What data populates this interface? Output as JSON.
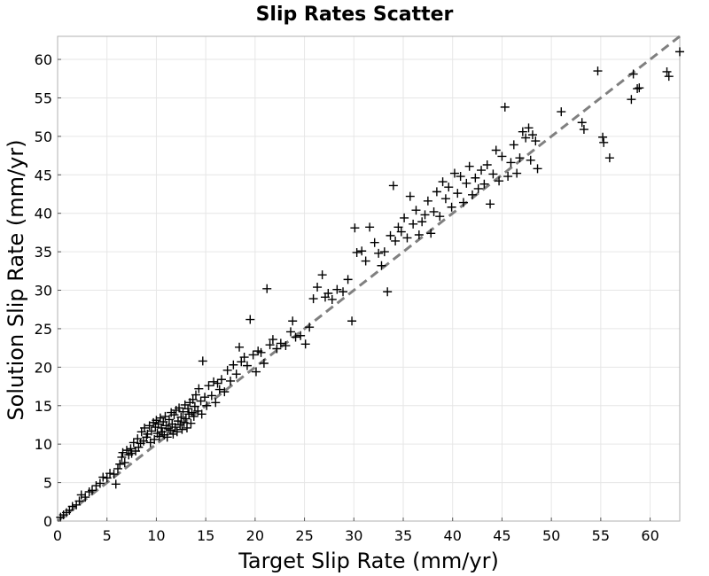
{
  "chart_data": {
    "type": "scatter",
    "title": "Slip Rates Scatter",
    "xlabel": "Target Slip Rate (mm/yr)",
    "ylabel": "Solution Slip Rate (mm/yr)",
    "xlim": [
      0,
      63
    ],
    "ylim": [
      0,
      63
    ],
    "xticks": [
      0,
      5,
      10,
      15,
      20,
      25,
      30,
      35,
      40,
      45,
      50,
      55,
      60
    ],
    "yticks": [
      0,
      5,
      10,
      15,
      20,
      25,
      30,
      35,
      40,
      45,
      50,
      55,
      60
    ],
    "grid": true,
    "marker": "+",
    "marker_color": "#000000",
    "reference_line": {
      "from": [
        0,
        0
      ],
      "to": [
        63,
        63
      ],
      "style": "dashed",
      "color": "#808080"
    },
    "points": [
      [
        0.3,
        0.5
      ],
      [
        0.6,
        0.8
      ],
      [
        0.9,
        1.1
      ],
      [
        1.2,
        1.4
      ],
      [
        1.5,
        1.9
      ],
      [
        1.9,
        2.1
      ],
      [
        2.2,
        2.6
      ],
      [
        2.4,
        3.4
      ],
      [
        2.8,
        3.1
      ],
      [
        3.2,
        3.8
      ],
      [
        3.5,
        4.0
      ],
      [
        3.9,
        4.6
      ],
      [
        4.3,
        4.9
      ],
      [
        4.6,
        5.7
      ],
      [
        5.0,
        5.6
      ],
      [
        5.3,
        6.2
      ],
      [
        5.7,
        6.1
      ],
      [
        5.9,
        4.8
      ],
      [
        6.1,
        6.8
      ],
      [
        6.3,
        7.4
      ],
      [
        6.5,
        8.3
      ],
      [
        6.6,
        8.9
      ],
      [
        6.8,
        7.6
      ],
      [
        7.0,
        9.2
      ],
      [
        7.2,
        8.6
      ],
      [
        7.4,
        9.4
      ],
      [
        7.5,
        8.8
      ],
      [
        7.7,
        10.2
      ],
      [
        7.9,
        9.1
      ],
      [
        8.1,
        10.7
      ],
      [
        8.2,
        9.6
      ],
      [
        8.4,
        10.1
      ],
      [
        8.5,
        11.6
      ],
      [
        8.7,
        10.4
      ],
      [
        8.8,
        12.1
      ],
      [
        9.0,
        10.9
      ],
      [
        9.1,
        11.3
      ],
      [
        9.3,
        12.4
      ],
      [
        9.4,
        10.2
      ],
      [
        9.5,
        11.7
      ],
      [
        9.7,
        12.8
      ],
      [
        9.8,
        10.6
      ],
      [
        9.9,
        12.2
      ],
      [
        10.0,
        13.1
      ],
      [
        10.1,
        11.4
      ],
      [
        10.2,
        12.6
      ],
      [
        10.3,
        11.0
      ],
      [
        10.4,
        13.4
      ],
      [
        10.5,
        12.1
      ],
      [
        10.6,
        11.6
      ],
      [
        10.7,
        12.9
      ],
      [
        10.8,
        11.2
      ],
      [
        10.9,
        13.6
      ],
      [
        11.0,
        12.4
      ],
      [
        11.1,
        10.9
      ],
      [
        11.2,
        12.0
      ],
      [
        11.3,
        13.2
      ],
      [
        11.4,
        11.8
      ],
      [
        11.5,
        14.1
      ],
      [
        11.6,
        12.6
      ],
      [
        11.7,
        11.3
      ],
      [
        11.8,
        13.8
      ],
      [
        11.9,
        12.2
      ],
      [
        12.0,
        14.4
      ],
      [
        12.1,
        11.6
      ],
      [
        12.2,
        13.0
      ],
      [
        12.3,
        14.7
      ],
      [
        12.4,
        12.5
      ],
      [
        12.5,
        13.5
      ],
      [
        12.6,
        11.9
      ],
      [
        12.7,
        14.2
      ],
      [
        12.8,
        12.8
      ],
      [
        12.9,
        15.1
      ],
      [
        13.0,
        13.3
      ],
      [
        13.1,
        12.1
      ],
      [
        13.2,
        14.6
      ],
      [
        13.3,
        13.9
      ],
      [
        13.4,
        15.4
      ],
      [
        13.5,
        12.7
      ],
      [
        13.6,
        14.1
      ],
      [
        13.7,
        15.8
      ],
      [
        13.8,
        13.6
      ],
      [
        13.9,
        14.9
      ],
      [
        14.0,
        16.4
      ],
      [
        14.2,
        14.3
      ],
      [
        14.3,
        17.2
      ],
      [
        14.5,
        15.6
      ],
      [
        14.6,
        13.9
      ],
      [
        14.7,
        20.8
      ],
      [
        14.9,
        16.1
      ],
      [
        15.1,
        15.0
      ],
      [
        15.3,
        17.6
      ],
      [
        15.6,
        16.3
      ],
      [
        15.8,
        18.1
      ],
      [
        16.0,
        15.4
      ],
      [
        16.2,
        17.9
      ],
      [
        16.4,
        17.1
      ],
      [
        16.6,
        18.4
      ],
      [
        16.9,
        16.8
      ],
      [
        17.2,
        19.6
      ],
      [
        17.5,
        18.2
      ],
      [
        17.8,
        20.3
      ],
      [
        18.1,
        19.1
      ],
      [
        18.4,
        22.6
      ],
      [
        18.6,
        20.7
      ],
      [
        18.9,
        21.3
      ],
      [
        19.2,
        20.2
      ],
      [
        19.5,
        26.2
      ],
      [
        19.8,
        21.6
      ],
      [
        20.1,
        19.4
      ],
      [
        20.3,
        22.1
      ],
      [
        20.6,
        21.9
      ],
      [
        20.9,
        20.5
      ],
      [
        21.2,
        30.2
      ],
      [
        21.5,
        22.9
      ],
      [
        21.8,
        23.6
      ],
      [
        22.2,
        22.4
      ],
      [
        22.6,
        23.1
      ],
      [
        23.1,
        22.8
      ],
      [
        23.6,
        24.6
      ],
      [
        23.8,
        26.0
      ],
      [
        24.1,
        23.9
      ],
      [
        24.6,
        24.1
      ],
      [
        25.1,
        23.0
      ],
      [
        25.5,
        25.2
      ],
      [
        25.9,
        28.9
      ],
      [
        26.3,
        30.4
      ],
      [
        26.8,
        32.0
      ],
      [
        27.1,
        29.1
      ],
      [
        27.4,
        29.6
      ],
      [
        27.8,
        28.8
      ],
      [
        28.3,
        30.1
      ],
      [
        28.9,
        29.8
      ],
      [
        29.4,
        31.4
      ],
      [
        29.8,
        26.0
      ],
      [
        30.1,
        38.1
      ],
      [
        30.3,
        34.9
      ],
      [
        30.8,
        35.1
      ],
      [
        31.2,
        33.8
      ],
      [
        31.6,
        38.2
      ],
      [
        32.1,
        36.2
      ],
      [
        32.5,
        34.8
      ],
      [
        32.8,
        33.2
      ],
      [
        33.1,
        35.0
      ],
      [
        33.4,
        29.8
      ],
      [
        33.7,
        37.1
      ],
      [
        34.0,
        43.6
      ],
      [
        34.2,
        36.4
      ],
      [
        34.5,
        38.2
      ],
      [
        34.8,
        37.6
      ],
      [
        35.1,
        39.4
      ],
      [
        35.4,
        36.8
      ],
      [
        35.7,
        42.2
      ],
      [
        36.0,
        38.6
      ],
      [
        36.3,
        40.4
      ],
      [
        36.6,
        37.2
      ],
      [
        36.9,
        38.9
      ],
      [
        37.2,
        39.8
      ],
      [
        37.5,
        41.6
      ],
      [
        37.8,
        37.4
      ],
      [
        38.1,
        40.2
      ],
      [
        38.4,
        42.8
      ],
      [
        38.7,
        39.6
      ],
      [
        39.0,
        44.1
      ],
      [
        39.3,
        41.9
      ],
      [
        39.6,
        43.4
      ],
      [
        39.9,
        40.8
      ],
      [
        40.2,
        45.2
      ],
      [
        40.5,
        42.6
      ],
      [
        40.8,
        44.8
      ],
      [
        41.1,
        41.4
      ],
      [
        41.4,
        43.9
      ],
      [
        41.7,
        46.1
      ],
      [
        42.0,
        42.4
      ],
      [
        42.3,
        44.6
      ],
      [
        42.6,
        43.2
      ],
      [
        42.9,
        45.6
      ],
      [
        43.2,
        43.8
      ],
      [
        43.5,
        46.3
      ],
      [
        43.8,
        41.2
      ],
      [
        44.1,
        45.1
      ],
      [
        44.4,
        48.2
      ],
      [
        44.7,
        44.2
      ],
      [
        45.0,
        47.4
      ],
      [
        45.3,
        53.8
      ],
      [
        45.6,
        44.8
      ],
      [
        45.9,
        46.6
      ],
      [
        46.2,
        48.9
      ],
      [
        46.5,
        45.2
      ],
      [
        46.8,
        47.2
      ],
      [
        47.1,
        50.6
      ],
      [
        47.4,
        49.8
      ],
      [
        47.7,
        51.1
      ],
      [
        47.9,
        46.9
      ],
      [
        48.1,
        50.2
      ],
      [
        48.4,
        49.4
      ],
      [
        48.6,
        45.8
      ],
      [
        51.0,
        53.2
      ],
      [
        53.1,
        51.8
      ],
      [
        53.3,
        50.9
      ],
      [
        54.7,
        58.5
      ],
      [
        55.2,
        49.9
      ],
      [
        55.3,
        49.2
      ],
      [
        55.9,
        47.2
      ],
      [
        58.1,
        54.8
      ],
      [
        58.3,
        58.1
      ],
      [
        58.7,
        56.2
      ],
      [
        58.9,
        56.3
      ],
      [
        61.7,
        58.4
      ],
      [
        61.9,
        57.8
      ],
      [
        63.0,
        61.0
      ]
    ]
  }
}
